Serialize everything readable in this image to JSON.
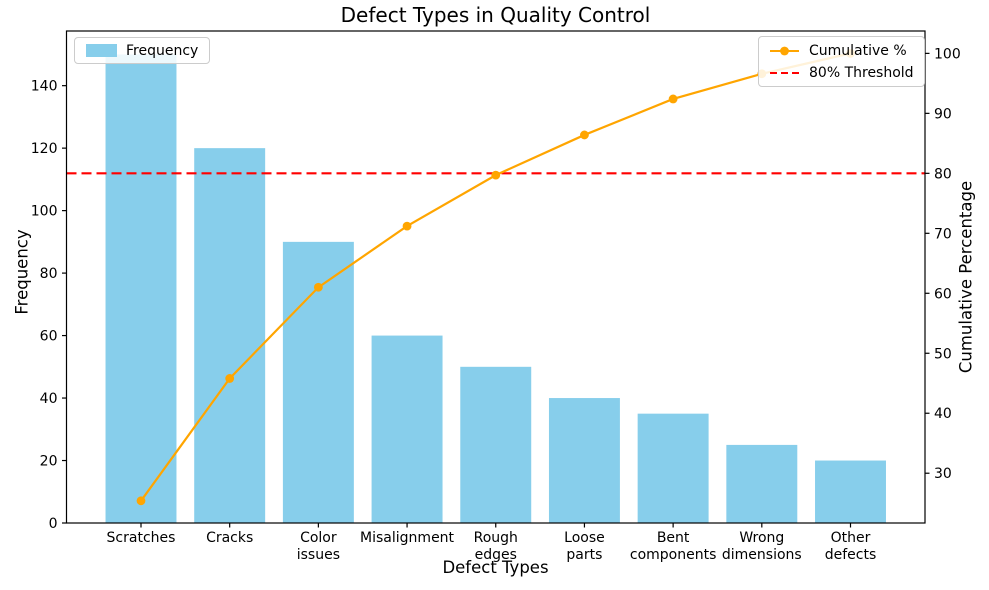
{
  "chart_data": {
    "type": "bar+line (Pareto)",
    "title": "Defect Types in Quality Control",
    "categories": [
      "Scratches",
      "Cracks",
      "Color\nissues",
      "Misalignment",
      "Rough\nedges",
      "Loose\nparts",
      "Bent\ncomponents",
      "Wrong\ndimensions",
      "Other\ndefects"
    ],
    "series": [
      {
        "name": "Frequency",
        "type": "bar",
        "axis": "left",
        "color": "#87CEEB",
        "values": [
          150,
          120,
          90,
          60,
          50,
          40,
          35,
          25,
          20
        ]
      },
      {
        "name": "Cumulative %",
        "type": "line",
        "axis": "right",
        "color": "#FFA500",
        "marker": "circle",
        "values": [
          25.4,
          45.8,
          61.0,
          71.2,
          79.7,
          86.4,
          92.4,
          96.6,
          100.0
        ]
      }
    ],
    "threshold_line": {
      "label": "80% Threshold",
      "value": 80,
      "axis": "right",
      "color": "#FF0000",
      "style": "dashed"
    },
    "axes": {
      "x": {
        "label": "Defect Types",
        "lim": [
          -0.84,
          8.84
        ]
      },
      "left": {
        "label": "Frequency",
        "ticks": [
          0,
          20,
          40,
          60,
          80,
          100,
          120,
          140
        ],
        "lim": [
          0,
          157.5
        ]
      },
      "right": {
        "label": "Cumulative Percentage",
        "ticks": [
          30,
          40,
          50,
          60,
          70,
          80,
          90,
          100
        ],
        "lim": [
          21.7,
          103.73
        ]
      }
    },
    "grid": false,
    "legend_left": {
      "position": "upper left",
      "entries": [
        "Frequency"
      ]
    },
    "legend_right": {
      "position": "upper right",
      "entries": [
        "Cumulative %",
        "80% Threshold"
      ]
    },
    "plot_background": "#ffffff",
    "spine_color": "#000000"
  }
}
